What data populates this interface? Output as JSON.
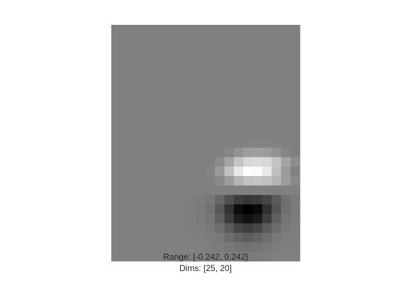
{
  "chart_data": {
    "type": "heatmap",
    "colormap": "gray",
    "range_label": "Range: [-0.242, 0.242]",
    "dims_label": "Dims: [25, 20]",
    "range": [
      -0.242,
      0.242
    ],
    "dims": [
      25,
      20
    ],
    "values": [
      [
        0,
        0,
        0,
        0,
        0,
        0,
        0,
        0,
        0,
        0,
        0,
        0,
        0,
        0,
        0,
        0,
        0,
        0,
        0,
        0
      ],
      [
        0,
        0,
        0,
        0,
        0,
        0,
        0,
        0,
        0,
        0,
        0,
        0,
        0,
        0,
        0,
        0,
        0,
        0,
        0,
        0
      ],
      [
        0,
        0,
        0,
        0,
        0,
        0,
        0,
        0,
        0,
        0,
        0,
        0,
        0,
        0,
        0,
        0,
        0,
        0,
        0,
        0
      ],
      [
        0,
        0,
        0,
        0,
        0,
        0,
        0,
        0,
        0,
        0,
        0,
        0,
        0,
        0,
        0,
        0,
        0,
        0,
        0,
        0
      ],
      [
        0,
        0,
        0,
        0,
        0,
        0,
        0,
        0,
        0,
        0,
        0,
        0,
        0,
        0,
        0,
        0,
        0,
        0,
        0,
        0
      ],
      [
        0,
        0,
        0,
        0,
        0,
        0,
        0,
        0,
        0,
        0,
        0,
        0,
        0,
        0,
        0,
        0,
        0,
        0,
        0,
        0
      ],
      [
        0,
        0,
        0,
        0,
        0,
        0,
        0,
        0,
        0,
        0,
        0,
        0,
        0,
        0,
        0,
        0,
        0,
        0,
        0,
        0
      ],
      [
        0,
        0,
        0,
        0,
        0,
        0,
        0,
        0,
        0,
        0,
        0,
        0,
        0,
        0,
        0,
        0,
        0,
        0,
        0,
        0
      ],
      [
        0,
        0,
        0,
        0,
        0,
        0,
        0,
        0,
        0,
        0,
        0,
        0,
        0,
        0,
        0,
        0,
        0,
        0,
        0,
        0
      ],
      [
        0,
        0,
        0,
        0,
        0,
        0,
        0,
        0,
        0,
        0,
        0,
        0,
        0,
        0,
        0,
        0,
        0,
        0,
        0,
        0
      ],
      [
        0,
        0,
        0,
        0,
        0,
        0,
        0,
        0,
        0,
        0,
        0,
        0,
        0,
        0,
        0,
        0,
        0,
        0,
        0,
        0
      ],
      [
        0,
        0,
        0,
        0,
        0,
        0,
        0,
        0,
        0,
        0,
        0,
        0,
        0,
        0,
        0,
        0,
        0,
        0,
        0,
        0
      ],
      [
        0,
        0,
        0,
        0,
        0,
        0,
        0,
        0,
        0,
        0,
        0,
        0,
        0,
        0,
        0.005,
        0.006,
        0.006,
        0.005,
        0,
        0
      ],
      [
        0,
        0,
        0,
        0,
        0,
        0,
        0,
        0,
        0,
        0,
        0,
        0,
        0.013,
        0.036,
        0.055,
        0.06,
        0.055,
        0.036,
        0.013,
        0
      ],
      [
        0,
        0,
        0,
        0,
        0,
        0,
        0,
        0,
        0,
        0,
        0,
        0.024,
        0.069,
        0.128,
        0.166,
        0.175,
        0.166,
        0.128,
        0.069,
        0.024
      ],
      [
        0,
        0,
        0,
        0,
        0,
        0,
        0,
        0,
        0,
        0,
        0.007,
        0.05,
        0.123,
        0.2,
        0.242,
        0.234,
        0.2,
        0.123,
        0.05,
        0.007
      ],
      [
        0,
        0,
        0,
        0,
        0,
        0,
        0,
        0,
        0,
        0,
        0,
        0.018,
        0.055,
        0.098,
        0.125,
        0.13,
        0.125,
        0.098,
        0.055,
        0.018
      ],
      [
        0,
        0,
        0,
        0,
        0,
        0,
        0,
        0,
        0,
        0,
        0,
        0,
        0,
        0,
        0,
        0,
        0,
        0,
        0,
        0
      ],
      [
        0,
        0,
        0,
        0,
        0,
        0,
        0,
        0,
        -0.003,
        -0.006,
        -0.014,
        -0.048,
        -0.09,
        -0.125,
        -0.14,
        -0.13,
        -0.11,
        -0.07,
        -0.03,
        -0.01
      ],
      [
        0,
        0,
        0,
        0,
        0,
        0,
        0,
        0,
        -0.003,
        -0.008,
        -0.024,
        -0.075,
        -0.148,
        -0.22,
        -0.242,
        -0.225,
        -0.15,
        -0.08,
        -0.03,
        -0.01
      ],
      [
        0,
        0,
        0,
        0,
        0,
        0,
        0,
        0,
        -0.003,
        -0.008,
        -0.02,
        -0.06,
        -0.125,
        -0.185,
        -0.21,
        -0.19,
        -0.125,
        -0.06,
        -0.02,
        -0.008
      ],
      [
        0,
        0,
        0,
        0,
        0,
        0,
        0,
        0,
        -0.002,
        -0.005,
        -0.013,
        -0.035,
        -0.07,
        -0.11,
        -0.125,
        -0.11,
        -0.07,
        -0.035,
        -0.013,
        -0.004
      ],
      [
        0,
        0,
        0,
        0,
        0,
        0,
        0,
        0,
        0,
        -0.003,
        -0.006,
        -0.015,
        -0.035,
        -0.055,
        -0.063,
        -0.055,
        -0.035,
        -0.015,
        -0.006,
        -0.002
      ],
      [
        0,
        0,
        0,
        0,
        0,
        0,
        0,
        0,
        0,
        0,
        -0.003,
        -0.006,
        -0.013,
        -0.022,
        -0.025,
        -0.022,
        -0.013,
        -0.006,
        -0.003,
        0
      ],
      [
        0,
        0,
        0,
        0,
        0,
        0,
        0,
        0,
        0,
        0,
        0,
        0,
        -0.004,
        -0.007,
        -0.008,
        -0.007,
        -0.004,
        0,
        0,
        0
      ]
    ]
  }
}
